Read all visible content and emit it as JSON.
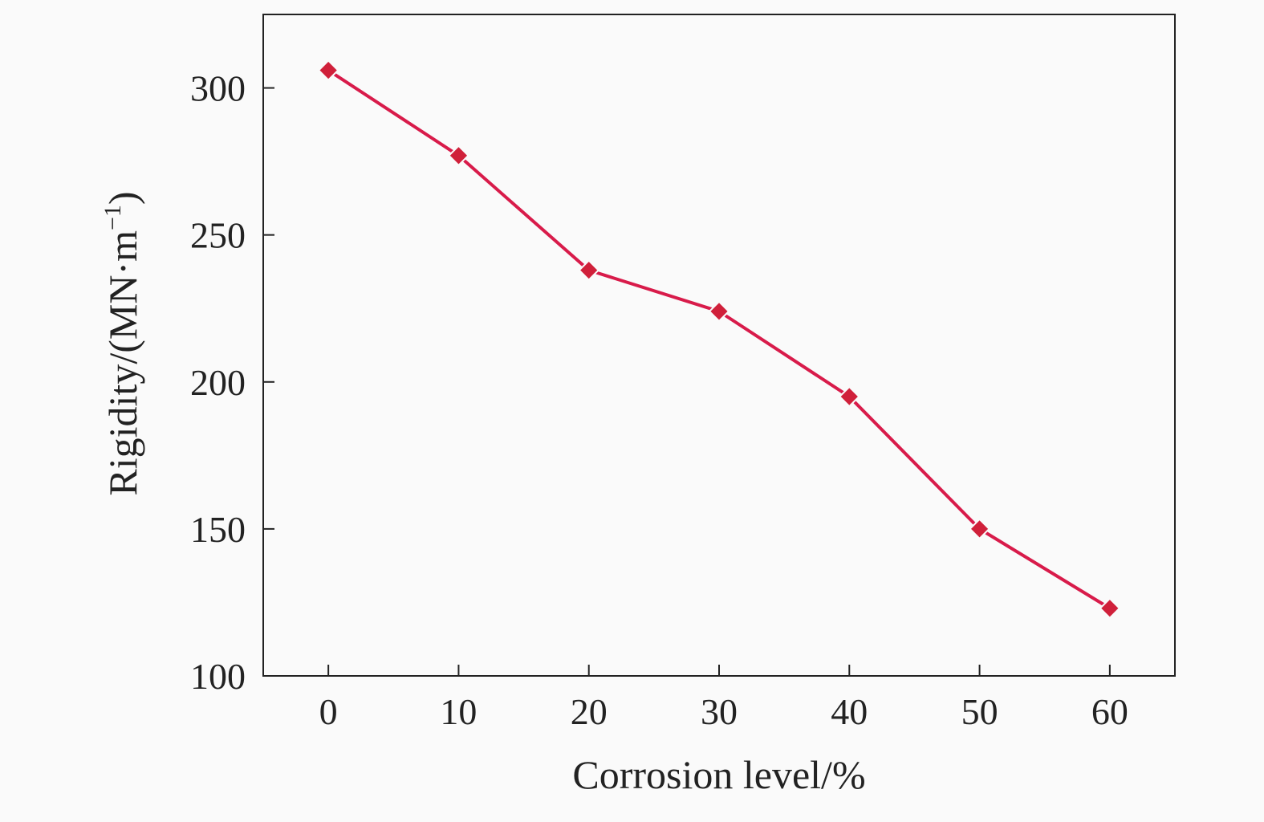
{
  "chart_data": {
    "type": "line",
    "xlabel": "Corrosion level/%",
    "ylabel": "Rigidity/(MN·m",
    "ylabel_superscript": "−1",
    "ylabel_close": ")",
    "x": [
      0,
      10,
      20,
      30,
      40,
      50,
      60
    ],
    "series": [
      {
        "values": [
          306,
          277,
          238,
          224,
          195,
          150,
          123
        ]
      }
    ],
    "xlim": [
      -5,
      65
    ],
    "ylim": [
      100,
      325
    ],
    "xticks": [
      0,
      10,
      20,
      30,
      40,
      50,
      60
    ],
    "yticks": [
      100,
      150,
      200,
      250,
      300
    ],
    "grid": false,
    "line_color": "#d81b4a",
    "marker_color": "#d0203a",
    "marker": "diamond"
  }
}
